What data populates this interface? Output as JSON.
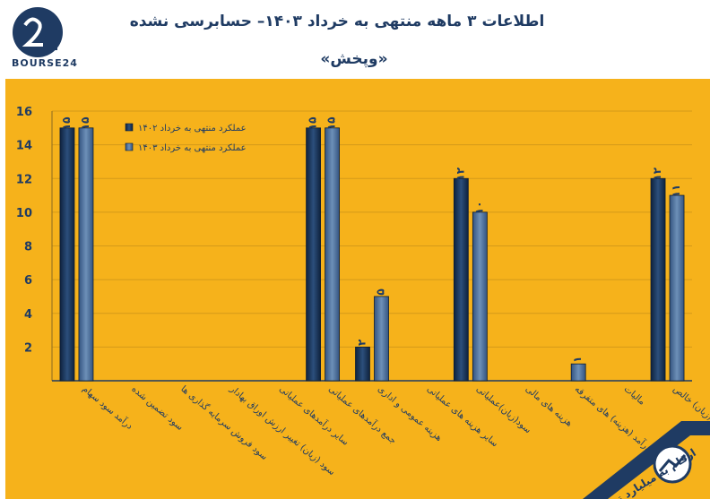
{
  "header": {
    "logo_text": "BOURSE24",
    "title": "اطلاعات ۳ ماهه منتهی به خرداد ۱۴۰۳– حسابرسی نشده",
    "subtitle": "«وپخش»"
  },
  "badge": {
    "text": "ارقام به میلیارد تومان"
  },
  "colors": {
    "background": "#f6b21b",
    "series_1402": "#1b3558",
    "series_1403": "#4a6b94",
    "text": "#1f3b63"
  },
  "chart_data": {
    "type": "bar",
    "categories": [
      "درآمد سود سهام",
      "سود تضمین شده",
      "سود فروش سرمایه گذاری ها",
      "سود (زیان) تغییر ارزش اوراق بهادار",
      "سایر درآمدهای عملیاتی",
      "جمع درآمدهای عملیاتی",
      "هزینه عمومی و اداری",
      "سایر هزینه های عملیاتی",
      "سود(زیان)عملیاتی",
      "هزینه های مالی",
      "درآمد (هزینه) های متفرقه",
      "مالیات",
      "سود(زیان) خالص"
    ],
    "series": [
      {
        "name": "عملکرد منتهی به خرداد ۱۴۰۲",
        "values": [
          15,
          null,
          null,
          null,
          null,
          15,
          2,
          null,
          12,
          null,
          null,
          null,
          12
        ],
        "labels": [
          "۱۵",
          "",
          "",
          "",
          "",
          "۱۵",
          "۲",
          "",
          "۱۲",
          "",
          "",
          "",
          "۱۲"
        ]
      },
      {
        "name": "عملکرد منتهی به خرداد ۱۴۰۳",
        "values": [
          15,
          null,
          null,
          null,
          null,
          15,
          5,
          null,
          10,
          null,
          1,
          null,
          11
        ],
        "labels": [
          "۱۵",
          "",
          "",
          "",
          "",
          "۱۵",
          "۵",
          "",
          "۱۰",
          "",
          "۱",
          "",
          "۱۱"
        ]
      }
    ],
    "yticks": [
      "",
      "2",
      "4",
      "6",
      "8",
      "10",
      "12",
      "14",
      "16"
    ],
    "ylim": [
      0,
      16
    ],
    "grid": true,
    "legend_position": "top-left"
  }
}
